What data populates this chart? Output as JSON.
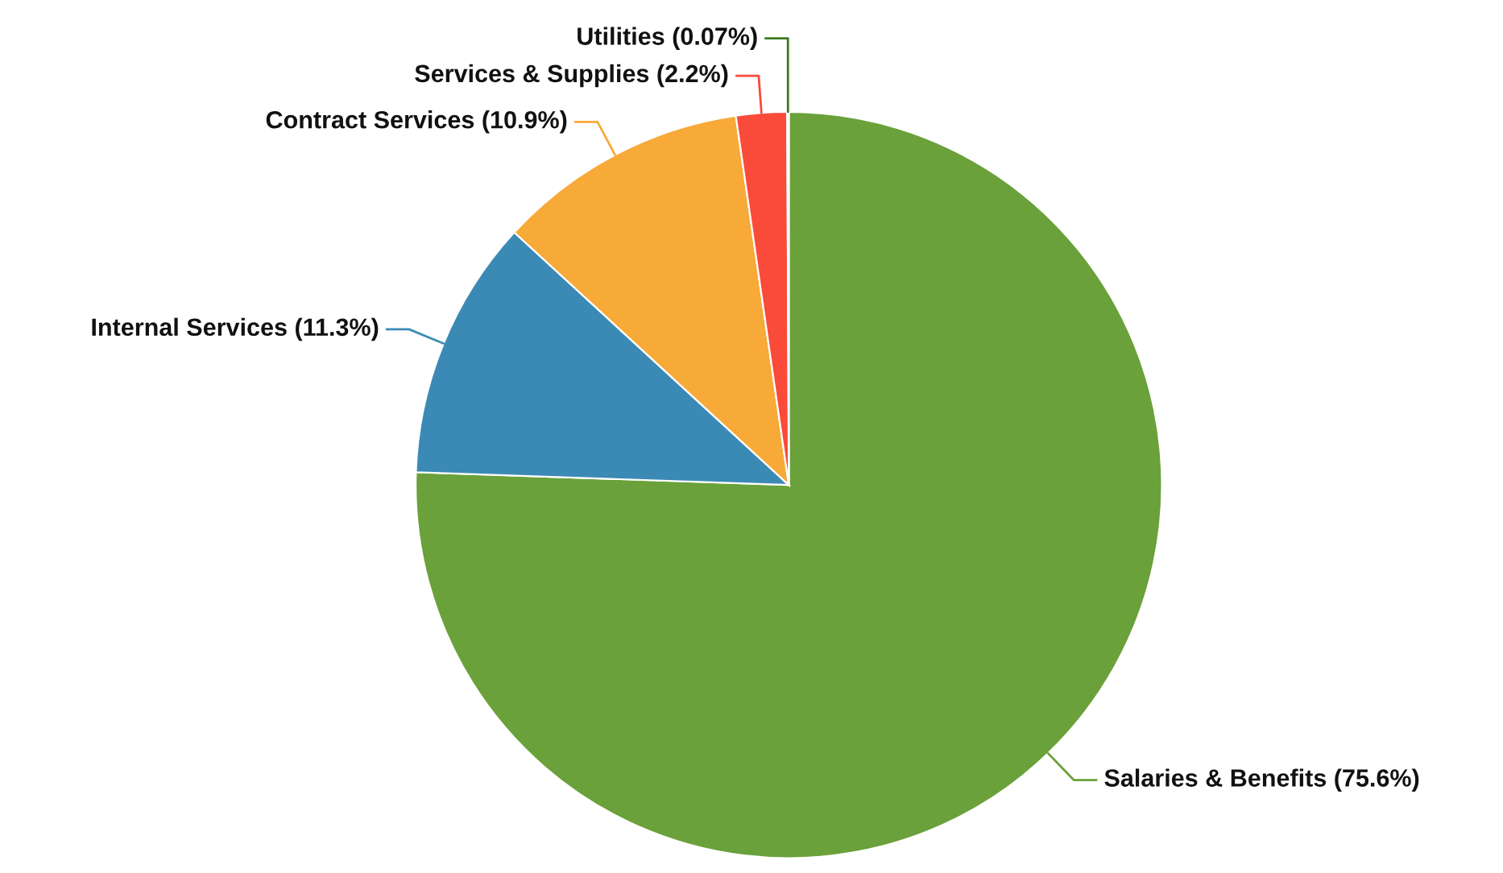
{
  "chart_data": {
    "type": "pie",
    "categories": [
      "Salaries & Benefits (75.6%)",
      "Internal Services (11.3%)",
      "Contract Services (10.9%)",
      "Services & Supplies (2.2%)",
      "Utilities (0.07%)"
    ],
    "values": [
      75.6,
      11.3,
      10.9,
      2.2,
      0.07
    ],
    "colors": [
      "#6aa13a",
      "#3b8ab5",
      "#f7aa38",
      "#f94a3a",
      "#3e7a1e"
    ],
    "legend": false
  }
}
